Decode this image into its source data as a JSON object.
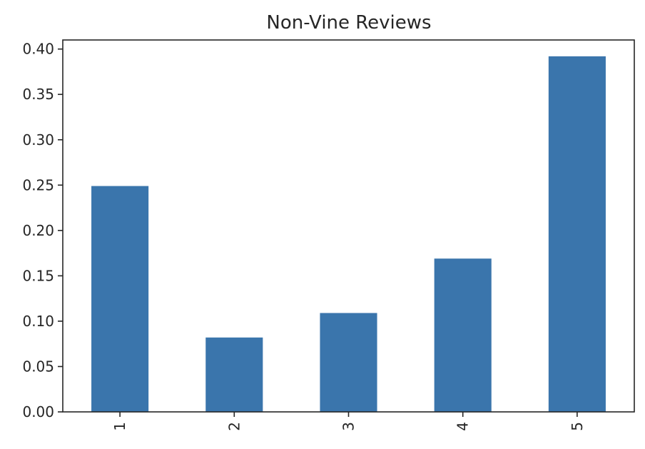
{
  "chart_data": {
    "type": "bar",
    "title": "Non-Vine Reviews",
    "xlabel": "",
    "ylabel": "",
    "categories": [
      "1",
      "2",
      "3",
      "4",
      "5"
    ],
    "values": [
      0.249,
      0.082,
      0.109,
      0.169,
      0.392
    ],
    "ylim": [
      0,
      0.41
    ],
    "y_ticks": [
      "0.00",
      "0.05",
      "0.10",
      "0.15",
      "0.20",
      "0.25",
      "0.30",
      "0.35",
      "0.40"
    ],
    "y_tick_values": [
      0,
      0.05,
      0.1,
      0.15,
      0.2,
      0.25,
      0.3,
      0.35,
      0.4
    ],
    "x_tick_rotation": "vertical",
    "grid": false,
    "legend": "none",
    "bar_color": "#3a75ac"
  }
}
